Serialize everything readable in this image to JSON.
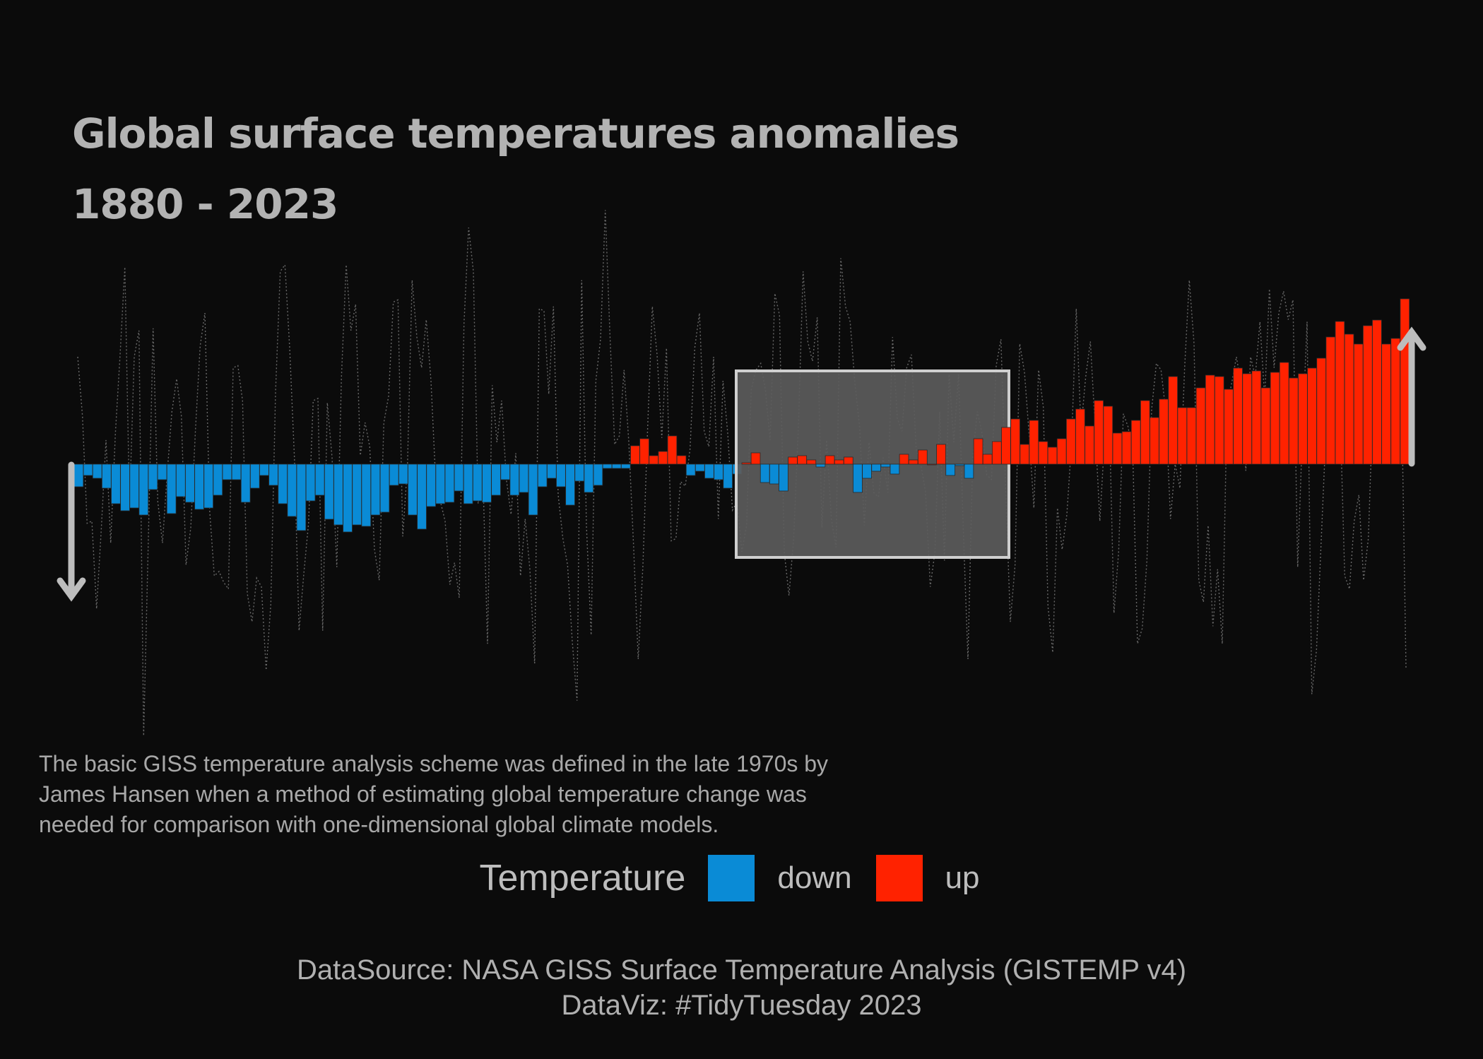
{
  "chart_data": {
    "type": "bar",
    "title": "Global surface temperatures anomalies",
    "subtitle": "1880 - 2023",
    "x_start": 1880,
    "x_end": 2023,
    "ylim": [
      -1.1,
      1.1
    ],
    "colors": {
      "down": "#0a8bd6",
      "up": "#ff2200",
      "background": "#0b0b0b",
      "text": "#b3b3b3"
    },
    "values": [
      -0.16,
      -0.08,
      -0.1,
      -0.17,
      -0.28,
      -0.33,
      -0.31,
      -0.36,
      -0.18,
      -0.11,
      -0.35,
      -0.23,
      -0.27,
      -0.32,
      -0.31,
      -0.22,
      -0.11,
      -0.11,
      -0.27,
      -0.17,
      -0.08,
      -0.15,
      -0.28,
      -0.37,
      -0.47,
      -0.26,
      -0.22,
      -0.39,
      -0.43,
      -0.48,
      -0.43,
      -0.44,
      -0.36,
      -0.34,
      -0.15,
      -0.14,
      -0.36,
      -0.46,
      -0.3,
      -0.28,
      -0.27,
      -0.19,
      -0.28,
      -0.26,
      -0.27,
      -0.22,
      -0.11,
      -0.22,
      -0.2,
      -0.36,
      -0.16,
      -0.1,
      -0.16,
      -0.29,
      -0.12,
      -0.2,
      -0.15,
      -0.03,
      -0.03,
      -0.03,
      0.13,
      0.18,
      0.06,
      0.09,
      0.2,
      0.06,
      -0.08,
      -0.05,
      -0.1,
      -0.11,
      -0.17,
      -0.07,
      0.01,
      0.08,
      -0.13,
      -0.14,
      -0.19,
      0.05,
      0.06,
      0.03,
      -0.02,
      0.06,
      0.03,
      0.05,
      -0.2,
      -0.1,
      -0.05,
      -0.02,
      -0.07,
      0.07,
      0.03,
      0.1,
      0.0,
      0.14,
      -0.08,
      -0.01,
      -0.1,
      0.18,
      0.07,
      0.16,
      0.26,
      0.32,
      0.14,
      0.31,
      0.16,
      0.12,
      0.18,
      0.32,
      0.39,
      0.27,
      0.45,
      0.41,
      0.22,
      0.23,
      0.31,
      0.45,
      0.33,
      0.46,
      0.62,
      0.4,
      0.4,
      0.54,
      0.63,
      0.62,
      0.53,
      0.68,
      0.64,
      0.66,
      0.54,
      0.65,
      0.72,
      0.61,
      0.64,
      0.68,
      0.75,
      0.9,
      1.01,
      0.92,
      0.85,
      0.98,
      1.02,
      0.85,
      0.89,
      1.17
    ],
    "anomaly_line": [
      0.49,
      0.22,
      -0.27,
      -0.26,
      -0.66,
      -0.3,
      0.11,
      -0.36,
      0.14,
      0.5,
      0.9,
      -0.19,
      0.49,
      0.61,
      -1.24,
      -0.34,
      0.62,
      -0.17,
      -0.36,
      -0.04,
      0.24,
      0.39,
      0.22,
      -0.46,
      -0.29,
      0.16,
      0.54,
      0.69,
      -0.21,
      -0.51,
      -0.49,
      -0.54,
      -0.57,
      0.44,
      0.45,
      0.29,
      -0.59,
      -0.72,
      -0.52,
      -0.56,
      -0.94,
      -0.64,
      0.33,
      0.88,
      0.91,
      0.53,
      0.03,
      -0.76,
      -0.5,
      -0.27,
      0.29,
      0.3,
      -0.76,
      0.28,
      0.03,
      -0.47,
      0.4,
      0.91,
      0.61,
      0.73,
      0.04,
      0.19,
      0.08,
      -0.39,
      -0.53,
      0.19,
      0.31,
      0.74,
      0.75,
      -0.33,
      -0.01,
      0.84,
      0.58,
      0.44,
      0.66,
      0.38,
      -0.08,
      -0.17,
      -0.26,
      -0.55,
      -0.45,
      -0.61,
      0.64,
      1.08,
      0.88,
      -0.18,
      -0.02,
      -0.82,
      0.36,
      0.1,
      0.29,
      -0.07,
      -0.23,
      0.05,
      -0.51,
      -0.25,
      -0.48,
      -0.91,
      0.71,
      0.7,
      0.32,
      0.72,
      -0.14,
      -0.34,
      -0.46,
      -0.81,
      -1.08,
      0.84,
      -0.28,
      -0.78,
      0.38,
      0.57,
      1.16,
      0.59,
      0.09,
      0.13,
      0.43,
      0.1,
      -0.37,
      -0.89,
      -0.46,
      0.17,
      0.72,
      0.5,
      0.12,
      0.53,
      -0.35,
      -0.34,
      -0.08,
      -0.1,
      0.07,
      0.53,
      0.69,
      0.15,
      0.08,
      0.49,
      -0.25,
      0.38,
      0.14,
      -0.21,
      -0.17,
      -0.4,
      -0.28,
      0.34,
      0.43,
      0.46,
      0.34,
      0.11,
      0.78,
      0.68,
      -0.4,
      -0.6,
      -0.34,
      0.17,
      0.88,
      0.56,
      0.47,
      0.67,
      -0.29,
      0.11,
      -0.25,
      -0.38,
      0.94,
      0.72,
      0.65,
      0.37,
      0.17,
      -0.28,
      0.1,
      -0.13,
      -0.15,
      0.03,
      -0.13,
      0.58,
      0.21,
      0.15,
      0.44,
      0.5,
      0.07,
      0.0,
      -0.13,
      -0.56,
      -0.4,
      0.24,
      -0.44,
      0.41,
      0.1,
      0.41,
      -0.29,
      -0.89,
      0.03,
      0.24,
      0.14,
      -0.05,
      -0.07,
      0.45,
      0.57,
      -0.1,
      -0.72,
      -0.46,
      0.55,
      0.42,
      0.13,
      -0.2,
      0.43,
      0.26,
      -0.65,
      -0.86,
      -0.2,
      -0.39,
      -0.23,
      0.1,
      0.71,
      0.16,
      0.4,
      0.56,
      0.17,
      -0.26,
      0.11,
      0.23,
      -0.68,
      -0.4,
      0.23,
      0.17,
      0.05,
      -0.82,
      -0.75,
      -0.44,
      0.25,
      0.46,
      0.43,
      0.24,
      -0.25,
      0.0,
      -0.11,
      0.44,
      0.84,
      0.55,
      -0.53,
      -0.63,
      -0.28,
      -0.74,
      -0.48,
      -0.82,
      0.26,
      0.37,
      0.49,
      0.36,
      -0.03,
      0.49,
      0.4,
      0.65,
      0.3,
      0.8,
      0.44,
      0.69,
      0.79,
      0.66,
      0.75,
      -0.47,
      0.13,
      0.65,
      -1.05,
      -0.85,
      -0.35,
      0.15,
      0.19,
      0.16,
      0.24,
      -0.51,
      -0.57,
      -0.26,
      -0.14,
      -0.53,
      -0.34,
      0.28,
      0.15,
      0.2,
      0.53,
      0.18,
      0.36,
      0.41,
      -0.93
    ]
  },
  "legend": {
    "title": "Temperature",
    "items": [
      {
        "label": "down",
        "color": "#0a8bd6"
      },
      {
        "label": "up",
        "color": "#ff2200"
      }
    ]
  },
  "note": "The basic GISS temperature analysis scheme was defined in the late 1970s by James Hansen when a method of estimating global temperature change was needed for comparison with one-dimensional global climate models.",
  "caption": {
    "line1": "DataSource: NASA GISS Surface Temperature Analysis (GISTEMP v4)",
    "line2": "DataViz: #TidyTuesday 2023"
  }
}
